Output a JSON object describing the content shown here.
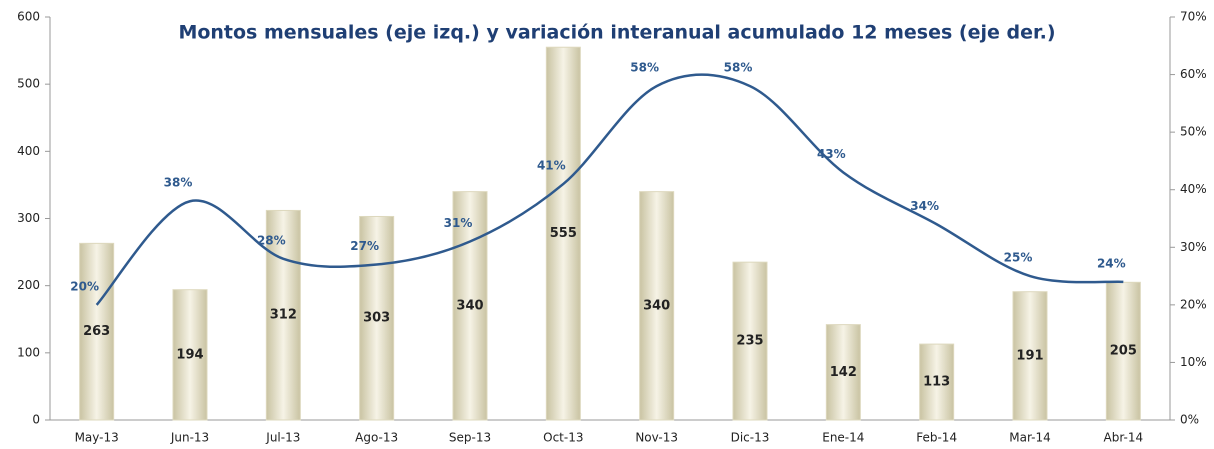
{
  "chart_data": {
    "type": "bar-line",
    "title": "Montos mensuales (eje izq.) y variación interanual acumulado 12 meses (eje der.)",
    "categories": [
      "May-13",
      "Jun-13",
      "Jul-13",
      "Ago-13",
      "Sep-13",
      "Oct-13",
      "Nov-13",
      "Dic-13",
      "Ene-14",
      "Feb-14",
      "Mar-14",
      "Abr-14"
    ],
    "series": [
      {
        "type": "bar",
        "color": "#ddd8bd",
        "values": [
          263,
          194,
          312,
          303,
          340,
          555,
          340,
          235,
          142,
          113,
          191,
          205
        ]
      },
      {
        "type": "line",
        "axis": "y2",
        "color": "#2f5a8e",
        "values": [
          20,
          38,
          28,
          27,
          31,
          41,
          58,
          58,
          43,
          34,
          25,
          24
        ],
        "value_labels": [
          "20%",
          "38%",
          "28%",
          "27%",
          "31%",
          "41%",
          "58%",
          "58%",
          "43%",
          "34%",
          "25%",
          "24%"
        ]
      }
    ],
    "ylim": [
      0,
      600
    ],
    "yticks": [
      0,
      100,
      200,
      300,
      400,
      500,
      600
    ],
    "y2lim": [
      0,
      70
    ],
    "y2ticks": [
      {
        "value": 0,
        "label": "0%"
      },
      {
        "value": 10,
        "label": "10%"
      },
      {
        "value": 20,
        "label": "20%"
      },
      {
        "value": 30,
        "label": "30%"
      },
      {
        "value": 40,
        "label": "40%"
      },
      {
        "value": 50,
        "label": "50%"
      },
      {
        "value": 60,
        "label": "60%"
      },
      {
        "value": 70,
        "label": "70%"
      }
    ],
    "grid": false
  }
}
